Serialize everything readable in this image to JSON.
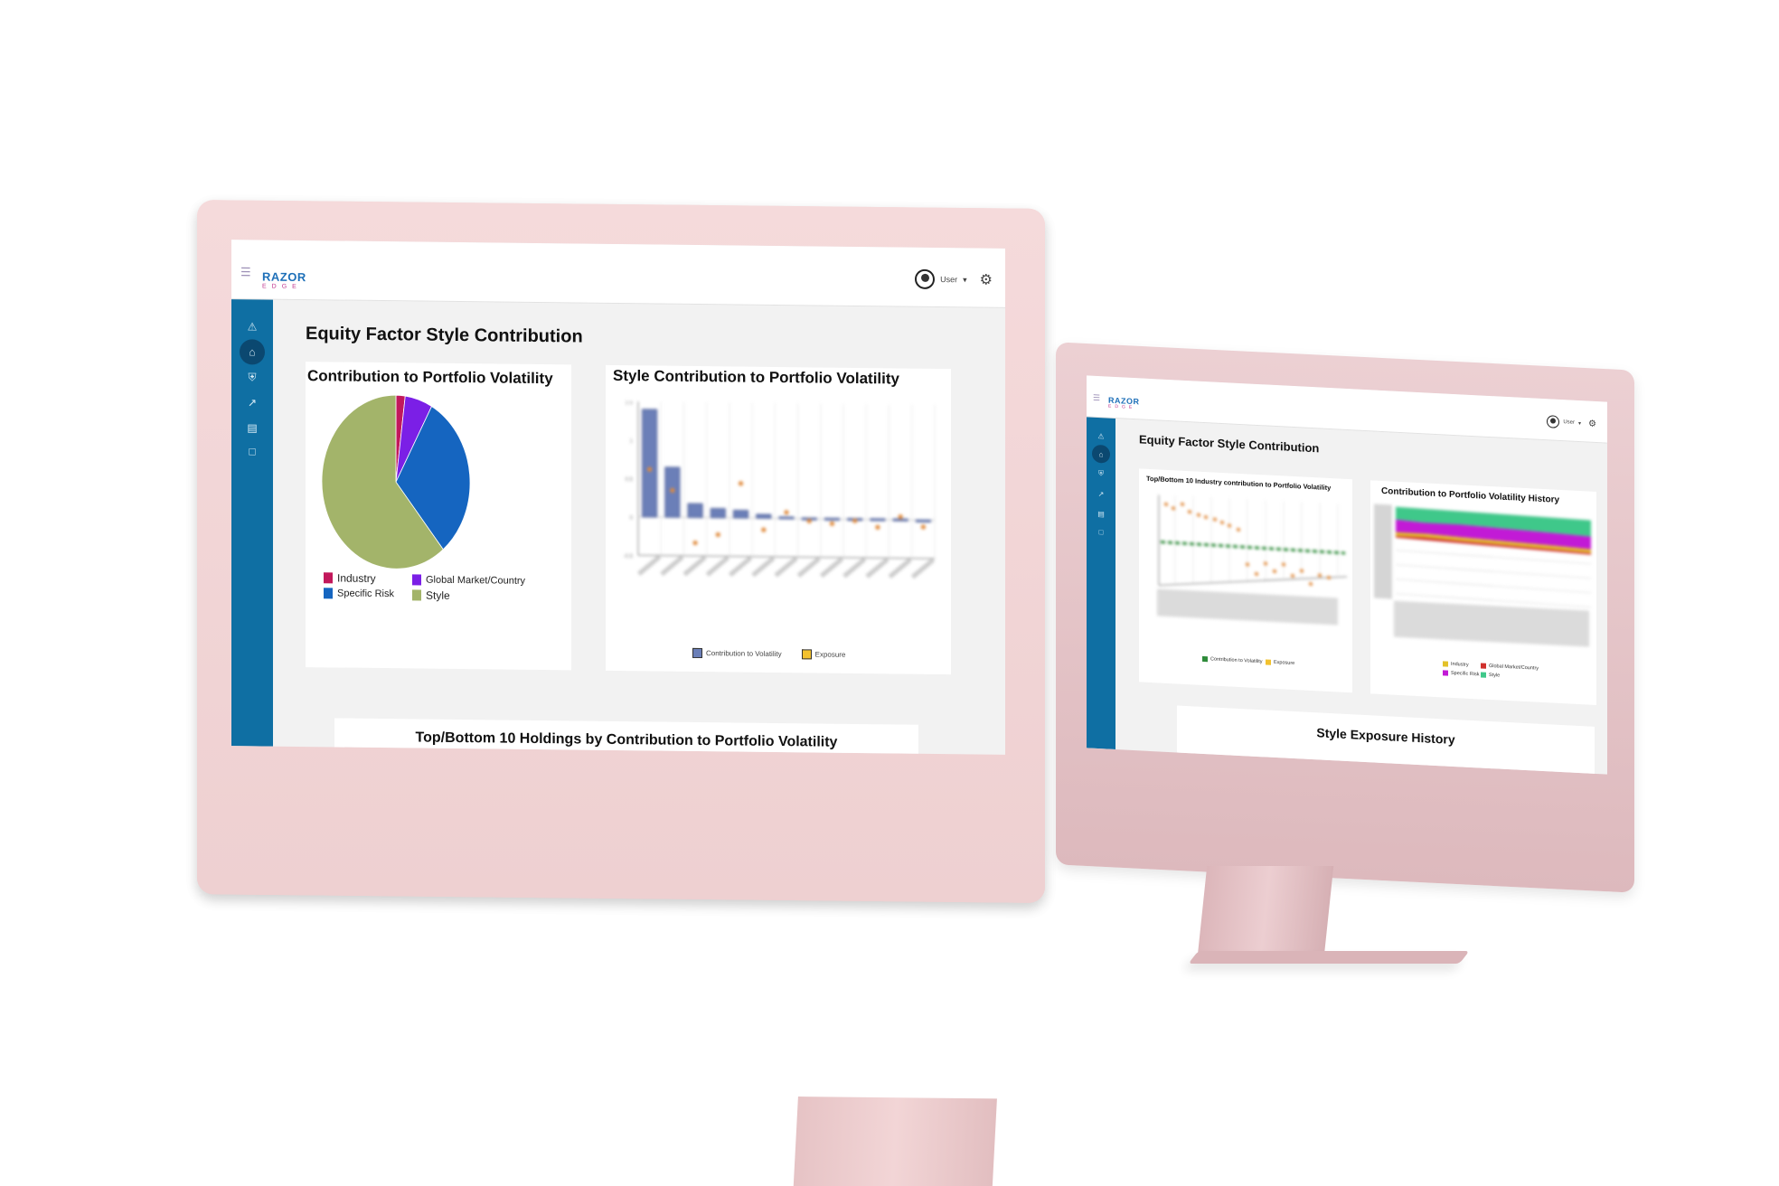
{
  "brand": {
    "name": "RAZOR",
    "sub": "EDGE"
  },
  "user": {
    "label": "User",
    "caret": "▾"
  },
  "colors": {
    "shell": "#f5dadb",
    "sidebar": "#0f6fa3",
    "brand_blue": "#1d6fb8",
    "brand_pink": "#c0368f",
    "industry": "#c2185b",
    "global": "#7b1fe6",
    "specific": "#1565c0",
    "style": "#a3b46a"
  },
  "sidebar_icons": [
    "alert-icon",
    "home-icon",
    "shield-icon",
    "chart-line-icon",
    "briefcase-icon",
    "chat-icon"
  ],
  "left_screen": {
    "page_title": "Equity Factor Style Contribution",
    "pie_panel": {
      "title": "Contribution to Portfolio Volatility",
      "legend": [
        "Industry",
        "Global Market/Country",
        "Specific Risk",
        "Style"
      ]
    },
    "bar_panel": {
      "title": "Style Contribution to Portfolio Volatility",
      "legend": [
        "Contribution to Volatility",
        "Exposure"
      ]
    },
    "holdings_panel": {
      "title": "Top/Bottom 10 Holdings by Contribution to Portfolio Volatility"
    }
  },
  "right_screen": {
    "page_title": "Equity Factor Style Contribution",
    "industry_panel": {
      "title": "Top/Bottom 10 Industry contribution to Portfolio Volatility",
      "legend": [
        "Contribution to Volatility",
        "Exposure"
      ]
    },
    "history_panel": {
      "title": "Contribution to Portfolio Volatility History",
      "legend": [
        "Industry",
        "Global Market/Country",
        "Specific Risk",
        "Style"
      ]
    },
    "exposure_panel": {
      "title": "Style Exposure History"
    }
  },
  "chart_data": [
    {
      "type": "pie",
      "title": "Contribution to Portfolio Volatility",
      "categories": [
        "Industry",
        "Global Market/Country",
        "Specific Risk",
        "Style"
      ],
      "values": [
        2,
        6,
        31,
        61
      ],
      "colors": [
        "#c2185b",
        "#7b1fe6",
        "#1565c0",
        "#a3b46a"
      ]
    },
    {
      "type": "bar",
      "title": "Style Contribution to Portfolio Volatility",
      "series": [
        {
          "name": "Contribution to Volatility",
          "values": [
            1.4,
            0.65,
            0.18,
            0.12,
            0.1,
            0.05,
            0.02,
            0.01,
            0.01,
            0.01,
            0.01,
            0.01,
            -0.02
          ]
        },
        {
          "name": "Exposure",
          "values": [
            0.62,
            0.35,
            -0.33,
            -0.22,
            0.45,
            -0.15,
            0.08,
            -0.03,
            -0.06,
            -0.02,
            -0.1,
            0.04,
            -0.09
          ]
        }
      ],
      "ylim": [
        -0.5,
        1.5
      ]
    }
  ]
}
